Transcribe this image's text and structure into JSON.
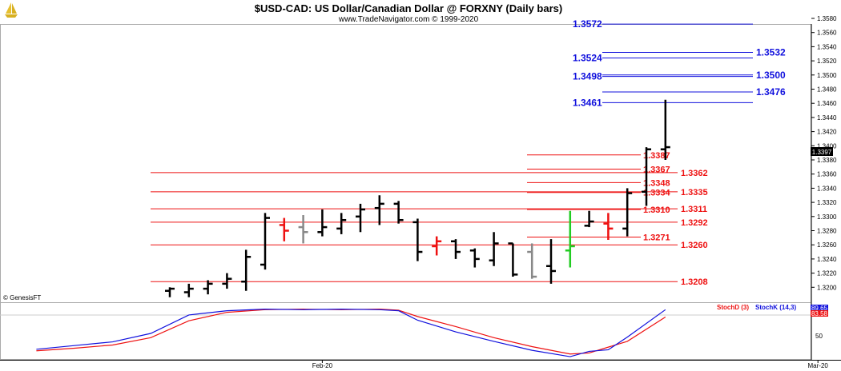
{
  "header": {
    "title": "$USD-CAD:  US Dollar/Canadian Dollar @ FORXNY  (Daily bars)",
    "subtitle": "www.TradeNavigator.com © 1999-2020",
    "logo_icon": "sailboat-logo-icon"
  },
  "watermark": "© GenesisFT",
  "colors": {
    "up_bar": "#000000",
    "down_red": "#ee1111",
    "neutral_gray": "#888888",
    "green_bar": "#22cc22",
    "blue_level": "#1010dd",
    "red_level": "#ee1111",
    "stoch_d": "#ee1111",
    "stoch_k": "#1010dd"
  },
  "chart_data": [
    {
      "type": "ohlc",
      "title": "$USD-CAD:  US Dollar/Canadian Dollar @ FORXNY  (Daily bars)",
      "ylim": [
        1.3185,
        1.3585
      ],
      "y_ticks": [
        "1.3580",
        "1.3560",
        "1.3540",
        "1.3520",
        "1.3500",
        "1.3480",
        "1.3460",
        "1.3440",
        "1.3420",
        "1.3400",
        "1.3380",
        "1.3360",
        "1.3340",
        "1.3320",
        "1.3300",
        "1.3280",
        "1.3260",
        "1.3240",
        "1.3220",
        "1.3200"
      ],
      "x_labels": [
        {
          "label": "Feb-20",
          "bar_index": 8
        },
        {
          "label": "Mar-20",
          "bar_index": 34
        }
      ],
      "last_price": "1.3397",
      "bars": [
        {
          "o": 1.3195,
          "h": 1.32,
          "l": 1.3186,
          "c": 1.3198,
          "color": "black"
        },
        {
          "o": 1.3193,
          "h": 1.3205,
          "l": 1.3186,
          "c": 1.3198,
          "color": "black"
        },
        {
          "o": 1.3198,
          "h": 1.321,
          "l": 1.319,
          "c": 1.3205,
          "color": "black"
        },
        {
          "o": 1.3205,
          "h": 1.322,
          "l": 1.3198,
          "c": 1.3212,
          "color": "black"
        },
        {
          "o": 1.3208,
          "h": 1.3253,
          "l": 1.3195,
          "c": 1.3243,
          "color": "black"
        },
        {
          "o": 1.3232,
          "h": 1.3305,
          "l": 1.3225,
          "c": 1.3298,
          "color": "black"
        },
        {
          "o": 1.3288,
          "h": 1.3298,
          "l": 1.3265,
          "c": 1.328,
          "color": "red"
        },
        {
          "o": 1.3285,
          "h": 1.3302,
          "l": 1.3262,
          "c": 1.3278,
          "color": "gray"
        },
        {
          "o": 1.3278,
          "h": 1.331,
          "l": 1.3272,
          "c": 1.3285,
          "color": "black"
        },
        {
          "o": 1.3283,
          "h": 1.3305,
          "l": 1.3275,
          "c": 1.3295,
          "color": "black"
        },
        {
          "o": 1.33,
          "h": 1.3318,
          "l": 1.3278,
          "c": 1.331,
          "color": "black"
        },
        {
          "o": 1.3312,
          "h": 1.333,
          "l": 1.3288,
          "c": 1.3318,
          "color": "black"
        },
        {
          "o": 1.3318,
          "h": 1.3322,
          "l": 1.329,
          "c": 1.3295,
          "color": "black"
        },
        {
          "o": 1.3292,
          "h": 1.3297,
          "l": 1.3237,
          "c": 1.325,
          "color": "black"
        },
        {
          "o": 1.3258,
          "h": 1.3272,
          "l": 1.3245,
          "c": 1.3265,
          "color": "red"
        },
        {
          "o": 1.3265,
          "h": 1.3268,
          "l": 1.324,
          "c": 1.325,
          "color": "black"
        },
        {
          "o": 1.3252,
          "h": 1.3255,
          "l": 1.3228,
          "c": 1.324,
          "color": "black"
        },
        {
          "o": 1.3238,
          "h": 1.3278,
          "l": 1.323,
          "c": 1.3262,
          "color": "black"
        },
        {
          "o": 1.3262,
          "h": 1.3262,
          "l": 1.3215,
          "c": 1.3218,
          "color": "black"
        },
        {
          "o": 1.325,
          "h": 1.3262,
          "l": 1.3212,
          "c": 1.3215,
          "color": "gray"
        },
        {
          "o": 1.323,
          "h": 1.3268,
          "l": 1.3205,
          "c": 1.3223,
          "color": "black"
        },
        {
          "o": 1.3252,
          "h": 1.3308,
          "l": 1.3228,
          "c": 1.3258,
          "color": "green"
        },
        {
          "o": 1.3287,
          "h": 1.3308,
          "l": 1.3285,
          "c": 1.3293,
          "color": "black"
        },
        {
          "o": 1.329,
          "h": 1.3305,
          "l": 1.3267,
          "c": 1.3283,
          "color": "red"
        },
        {
          "o": 1.3283,
          "h": 1.334,
          "l": 1.3272,
          "c": 1.3333,
          "color": "black"
        },
        {
          "o": 1.3335,
          "h": 1.3398,
          "l": 1.3315,
          "c": 1.3395,
          "color": "black"
        },
        {
          "o": 1.3395,
          "h": 1.3465,
          "l": 1.338,
          "c": 1.3398,
          "color": "black"
        }
      ],
      "blue_levels": [
        {
          "value": 1.3572,
          "left_label": "1.3572",
          "right_label": ""
        },
        {
          "value": 1.3532,
          "left_label": "",
          "right_label": "1.3532"
        },
        {
          "value": 1.3524,
          "left_label": "1.3524",
          "right_label": ""
        },
        {
          "value": 1.35,
          "left_label": "",
          "right_label": "1.3500"
        },
        {
          "value": 1.3498,
          "left_label": "1.3498",
          "right_label": ""
        },
        {
          "value": 1.3476,
          "left_label": "",
          "right_label": "1.3476"
        },
        {
          "value": 1.3461,
          "left_label": "1.3461",
          "right_label": ""
        }
      ],
      "red_levels": [
        {
          "value": 1.3387,
          "label": "1.3387",
          "group": "near"
        },
        {
          "value": 1.3367,
          "label": "1.3367",
          "group": "near"
        },
        {
          "value": 1.3362,
          "label": "1.3362",
          "group": "far"
        },
        {
          "value": 1.3348,
          "label": "1.3348",
          "group": "near"
        },
        {
          "value": 1.3335,
          "label": "1.3335",
          "group": "far"
        },
        {
          "value": 1.3334,
          "label": "1.3334",
          "group": "near"
        },
        {
          "value": 1.3311,
          "label": "1.3311",
          "group": "far"
        },
        {
          "value": 1.331,
          "label": "1.3310",
          "group": "near"
        },
        {
          "value": 1.3292,
          "label": "1.3292",
          "group": "far"
        },
        {
          "value": 1.3271,
          "label": "1.3271",
          "group": "near"
        },
        {
          "value": 1.326,
          "label": "1.3260",
          "group": "far"
        },
        {
          "value": 1.3208,
          "label": "1.3208",
          "group": "far"
        }
      ]
    },
    {
      "type": "line",
      "title": "",
      "ylim": [
        0,
        100
      ],
      "y_ticks": [
        "50"
      ],
      "series": [
        {
          "name": "StochD (3)",
          "color": "#ee1111",
          "x": [
            -7,
            -5,
            -3,
            -1,
            1,
            3,
            5,
            7,
            9,
            11,
            12,
            13,
            15,
            17,
            19,
            21,
            22,
            24,
            26
          ],
          "values": [
            17,
            22,
            28,
            42,
            74,
            90,
            95,
            96,
            95,
            96,
            94,
            82,
            63,
            42,
            25,
            11,
            13,
            35,
            81
          ]
        },
        {
          "name": "StochK (14,3)",
          "color": "#1010dd",
          "x": [
            -7,
            -5,
            -3,
            -1,
            1,
            3,
            5,
            7,
            9,
            11,
            12,
            13,
            15,
            17,
            19,
            21,
            22,
            23,
            24,
            26
          ],
          "values": [
            20,
            27,
            34,
            50,
            85,
            93,
            96,
            95,
            96,
            95,
            93,
            75,
            53,
            35,
            18,
            6,
            16,
            19,
            43,
            95
          ]
        }
      ],
      "readouts": [
        "89.65",
        "83.58"
      ],
      "legend": [
        "StochD (3)",
        "StochK (14,3)"
      ]
    }
  ]
}
